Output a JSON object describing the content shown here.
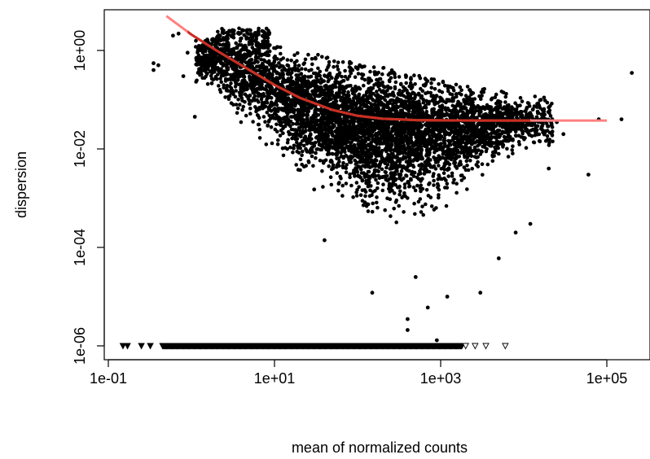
{
  "chart_data": {
    "type": "scatter",
    "title": "",
    "xlabel": "mean of normalized counts",
    "ylabel": "dispersion",
    "x_scale": "log10",
    "y_scale": "log10",
    "xlim": [
      0.1,
      300000
    ],
    "ylim": [
      8e-07,
      5
    ],
    "x_ticks": [
      {
        "value": 0.1,
        "label": "1e-01"
      },
      {
        "value": 10,
        "label": "1e+01"
      },
      {
        "value": 1000,
        "label": "1e+03"
      },
      {
        "value": 100000,
        "label": "1e+05"
      }
    ],
    "y_ticks": [
      {
        "value": 1,
        "label": "1e+00"
      },
      {
        "value": 0.01,
        "label": "1e-02"
      },
      {
        "value": 0.0001,
        "label": "1e-04"
      },
      {
        "value": 1e-06,
        "label": "1e-06"
      }
    ],
    "grid": false,
    "point_color": "#000000",
    "fit_line_color": "#ff8080",
    "fit_line_dark_color": "#c02010",
    "fit_line": {
      "x": [
        0.5,
        1,
        2,
        5,
        10,
        20,
        50,
        100,
        200,
        500,
        1000,
        3000,
        10000,
        30000,
        100000
      ],
      "y": [
        5,
        2.1,
        1.0,
        0.4,
        0.2,
        0.11,
        0.062,
        0.047,
        0.041,
        0.0385,
        0.038,
        0.0378,
        0.0377,
        0.0377,
        0.0377
      ]
    },
    "points_summary": "dense cloud of gene-wise dispersion estimates; dispersion decreases with mean and its spread widens between 1e+01 and 1e+04",
    "cloud": [
      {
        "x": 1.2,
        "center": 0.55,
        "low": 0.28,
        "high": 1.6
      },
      {
        "x": 2,
        "center": 0.6,
        "low": 0.15,
        "high": 2.2
      },
      {
        "x": 3,
        "center": 0.42,
        "low": 0.06,
        "high": 2.0
      },
      {
        "x": 5,
        "center": 0.28,
        "low": 0.035,
        "high": 1.7
      },
      {
        "x": 10,
        "center": 0.16,
        "low": 0.012,
        "high": 1.3
      },
      {
        "x": 20,
        "center": 0.09,
        "low": 0.005,
        "high": 1.0
      },
      {
        "x": 50,
        "center": 0.04,
        "low": 0.002,
        "high": 0.7
      },
      {
        "x": 100,
        "center": 0.028,
        "low": 0.0009,
        "high": 0.55
      },
      {
        "x": 300,
        "center": 0.022,
        "low": 0.0005,
        "high": 0.4
      },
      {
        "x": 1000,
        "center": 0.024,
        "low": 0.0008,
        "high": 0.25
      },
      {
        "x": 3000,
        "center": 0.03,
        "low": 0.003,
        "high": 0.18
      },
      {
        "x": 10000,
        "center": 0.035,
        "low": 0.01,
        "high": 0.12
      }
    ],
    "outliers": [
      {
        "x": 0.35,
        "y": 0.4
      },
      {
        "x": 0.35,
        "y": 0.55
      },
      {
        "x": 0.4,
        "y": 0.5
      },
      {
        "x": 0.6,
        "y": 2.0
      },
      {
        "x": 0.7,
        "y": 2.2
      },
      {
        "x": 0.9,
        "y": 0.9
      },
      {
        "x": 0.8,
        "y": 0.3
      },
      {
        "x": 1.1,
        "y": 0.045
      },
      {
        "x": 30,
        "y": 0.0015
      },
      {
        "x": 40,
        "y": 0.00014
      },
      {
        "x": 150,
        "y": 1.2e-05
      },
      {
        "x": 400,
        "y": 3.5e-06
      },
      {
        "x": 500,
        "y": 2.5e-05
      },
      {
        "x": 700,
        "y": 6e-06
      },
      {
        "x": 900,
        "y": 1.3e-06
      },
      {
        "x": 400,
        "y": 2.1e-06
      },
      {
        "x": 1200,
        "y": 1e-05
      },
      {
        "x": 3000,
        "y": 1.2e-05
      },
      {
        "x": 5000,
        "y": 6e-05
      },
      {
        "x": 20000,
        "y": 0.004
      },
      {
        "x": 60000,
        "y": 0.003
      },
      {
        "x": 30000,
        "y": 0.02
      },
      {
        "x": 20000,
        "y": 0.07
      },
      {
        "x": 80000,
        "y": 0.04
      },
      {
        "x": 200000,
        "y": 0.35
      },
      {
        "x": 150000,
        "y": 0.04
      },
      {
        "x": 25000,
        "y": 0.035
      },
      {
        "x": 12000,
        "y": 0.0003
      },
      {
        "x": 8000,
        "y": 0.0002
      }
    ],
    "zero_dispersion_points": {
      "y": 1e-06,
      "x_solid_range": [
        0.45,
        1800
      ],
      "x_sparse": [
        0.15,
        0.17,
        0.25,
        0.32
      ],
      "x_open_triangles": [
        2000,
        2600,
        3500,
        6000
      ]
    }
  }
}
